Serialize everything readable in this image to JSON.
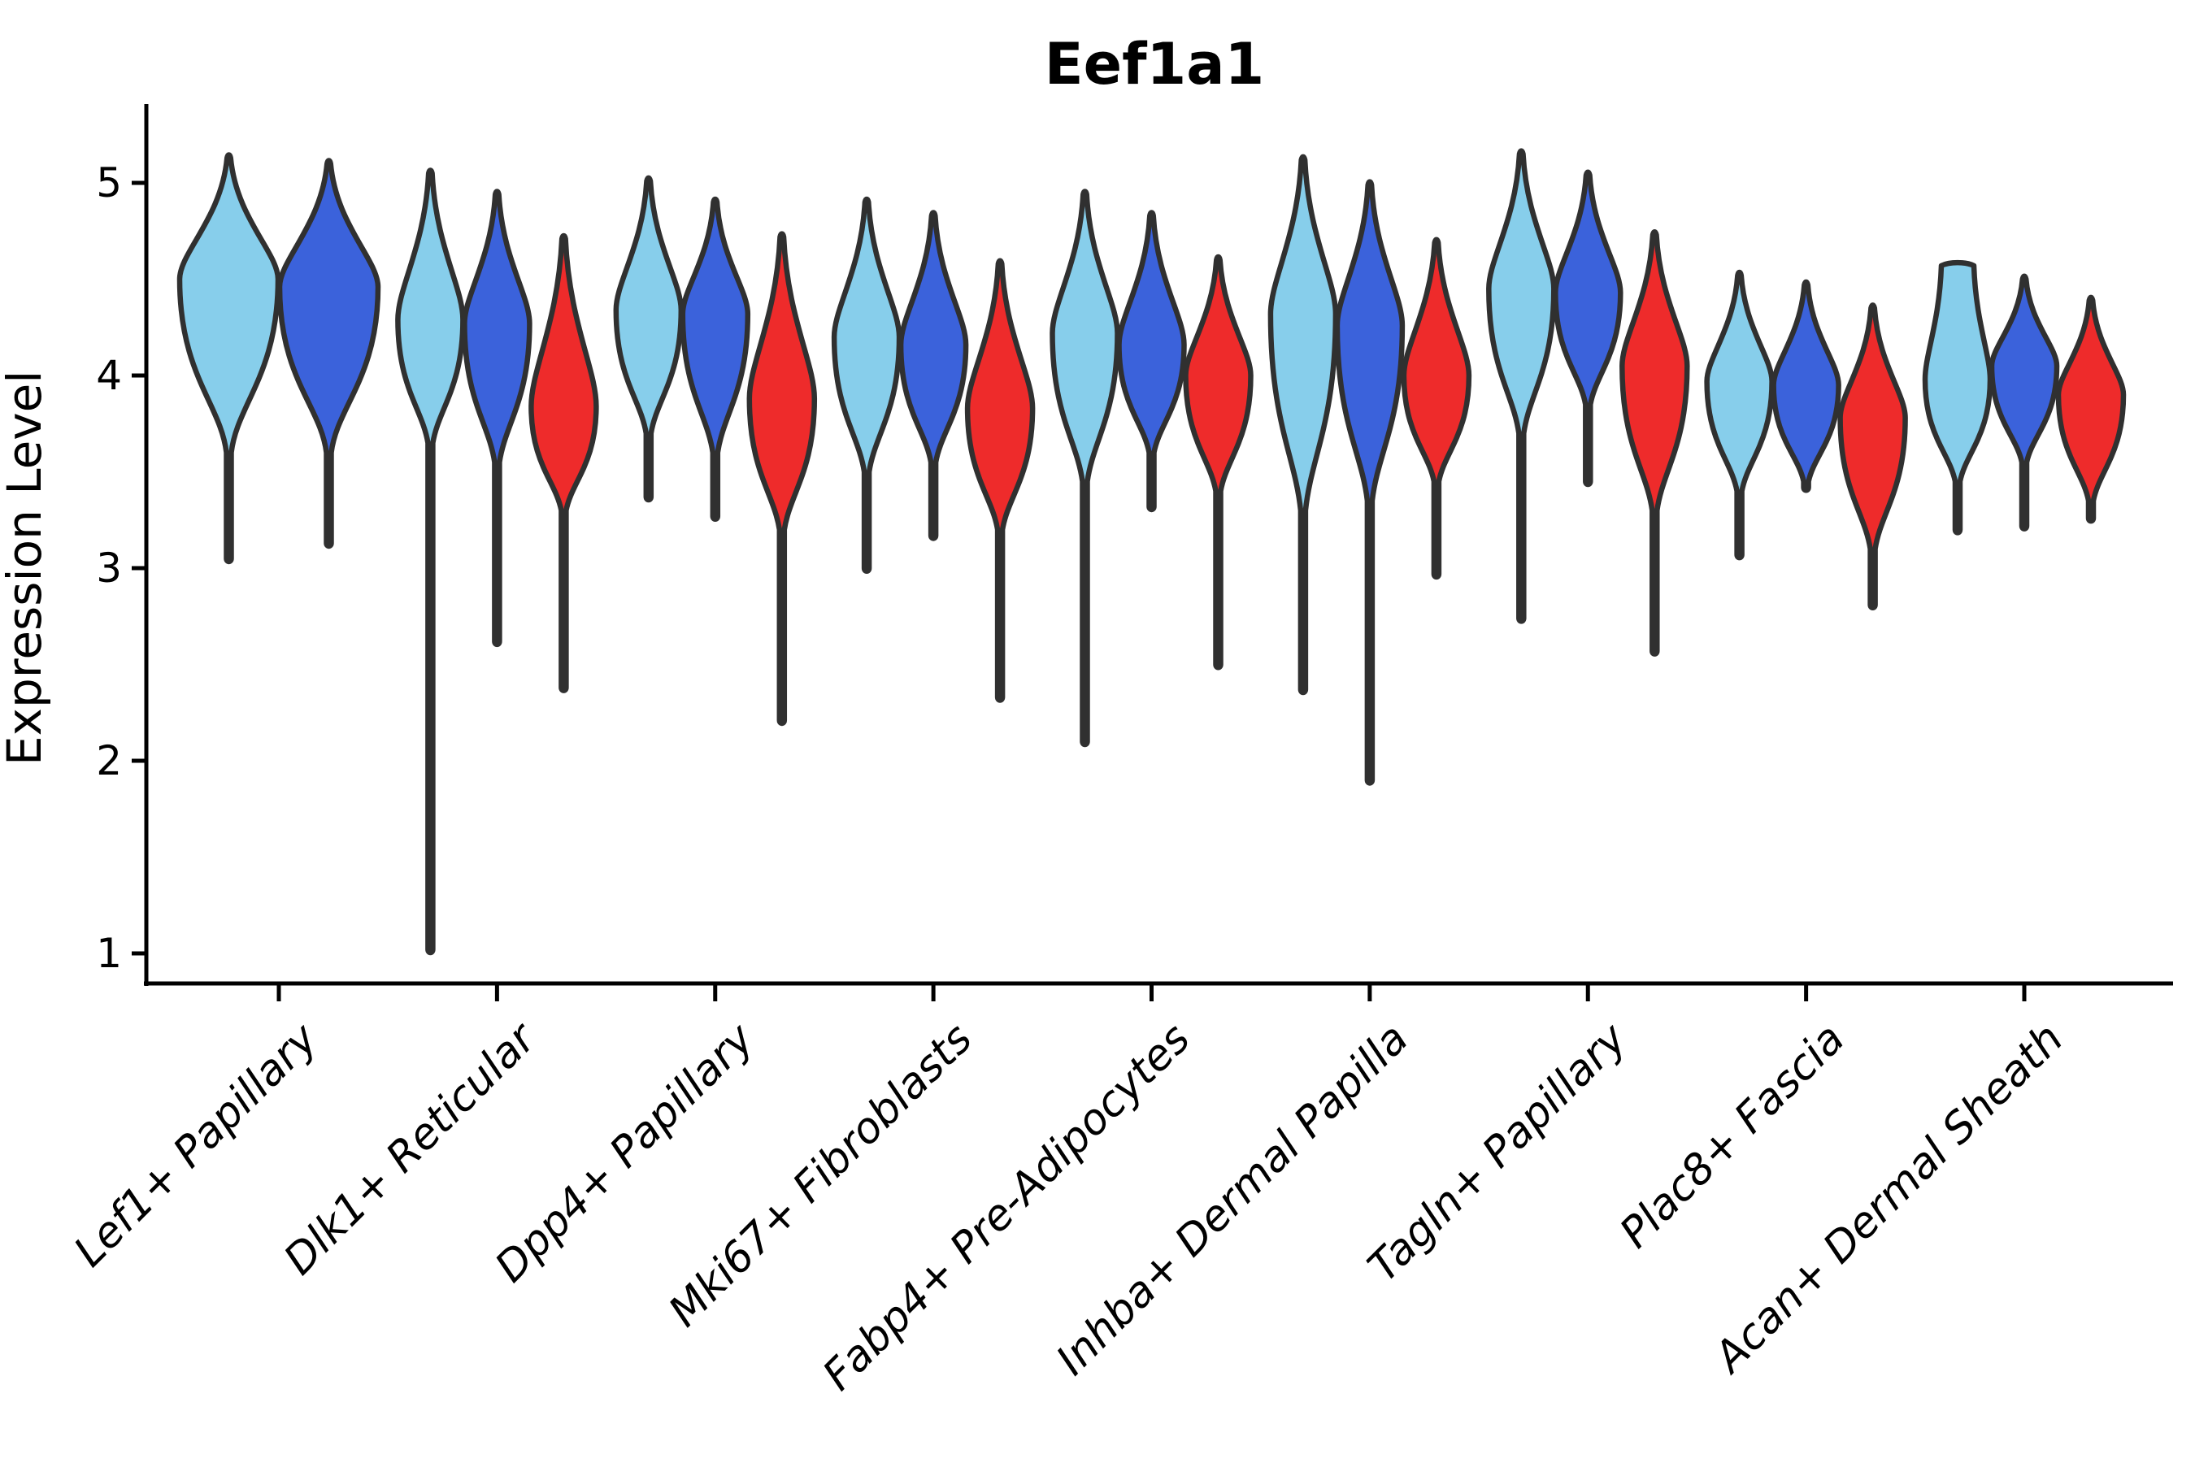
{
  "chart_data": {
    "type": "violin",
    "title": "Eef1a1",
    "ylabel": "Expression Level",
    "yticks": [
      {
        "label": "1",
        "value": 1
      },
      {
        "label": "2",
        "value": 2
      },
      {
        "label": "3",
        "value": 3
      },
      {
        "label": "4",
        "value": 4
      },
      {
        "label": "5",
        "value": 5
      }
    ],
    "ylim": [
      0.84,
      5.4
    ],
    "grid": false,
    "legend": "none",
    "categories": [
      "Lef1+ Papillary",
      "Dlk1+ Reticular",
      "Dpp4+ Papillary",
      "Mki67+ Fibroblasts",
      "Fabp4+ Pre-Adipocytes",
      "Inhba+ Dermal Papilla",
      "Tagln+ Papillary",
      "Plac8+ Fascia",
      "Acan+ Dermal Sheath"
    ],
    "outline_color": "#303030",
    "axis_color": "#000000",
    "background": "#ffffff",
    "series": [
      {
        "name": "skyblue-series",
        "color": "#87CEEB",
        "violins": [
          {
            "max": 5.13,
            "peak": 4.5,
            "taper": 3.6,
            "min": 3.05
          },
          {
            "max": 5.05,
            "peak": 4.29,
            "taper": 3.65,
            "min": 1.02
          },
          {
            "max": 5.01,
            "peak": 4.34,
            "taper": 3.7,
            "min": 3.37
          },
          {
            "max": 4.9,
            "peak": 4.2,
            "taper": 3.5,
            "min": 3.0
          },
          {
            "max": 4.94,
            "peak": 4.22,
            "taper": 3.45,
            "min": 2.1
          },
          {
            "max": 5.12,
            "peak": 4.32,
            "taper": 3.3,
            "min": 2.37
          },
          {
            "max": 5.15,
            "peak": 4.45,
            "taper": 3.7,
            "min": 2.74
          },
          {
            "max": 4.52,
            "peak": 3.97,
            "taper": 3.4,
            "min": 3.07
          },
          {
            "max": 4.57,
            "peak": 3.98,
            "taper": 3.45,
            "min": 3.2,
            "blunt_top": true
          }
        ]
      },
      {
        "name": "royalblue-series",
        "color": "#3B62DB",
        "violins": [
          {
            "max": 5.1,
            "peak": 4.46,
            "taper": 3.6,
            "min": 3.13
          },
          {
            "max": 4.94,
            "peak": 4.27,
            "taper": 3.55,
            "min": 2.62
          },
          {
            "max": 4.9,
            "peak": 4.32,
            "taper": 3.6,
            "min": 3.27
          },
          {
            "max": 4.83,
            "peak": 4.16,
            "taper": 3.55,
            "min": 3.17
          },
          {
            "max": 4.83,
            "peak": 4.16,
            "taper": 3.6,
            "min": 3.32
          },
          {
            "max": 4.99,
            "peak": 4.26,
            "taper": 3.35,
            "min": 1.9
          },
          {
            "max": 5.04,
            "peak": 4.43,
            "taper": 3.85,
            "min": 3.45
          },
          {
            "max": 4.47,
            "peak": 3.95,
            "taper": 3.45,
            "min": 3.42
          },
          {
            "max": 4.5,
            "peak": 4.05,
            "taper": 3.55,
            "min": 3.22
          }
        ]
      },
      {
        "name": "red-series",
        "color": "#EE2B2B",
        "violins": [
          null,
          {
            "max": 4.71,
            "peak": 3.84,
            "taper": 3.3,
            "min": 2.38
          },
          {
            "max": 4.72,
            "peak": 3.88,
            "taper": 3.2,
            "min": 2.21
          },
          {
            "max": 4.58,
            "peak": 3.83,
            "taper": 3.2,
            "min": 2.33
          },
          {
            "max": 4.6,
            "peak": 4.0,
            "taper": 3.4,
            "min": 2.5
          },
          {
            "max": 4.69,
            "peak": 4.0,
            "taper": 3.45,
            "min": 2.97
          },
          {
            "max": 4.73,
            "peak": 4.05,
            "taper": 3.3,
            "min": 2.57
          },
          {
            "max": 4.35,
            "peak": 3.78,
            "taper": 3.1,
            "min": 2.81
          },
          {
            "max": 4.39,
            "peak": 3.9,
            "taper": 3.35,
            "min": 3.26
          }
        ]
      }
    ]
  }
}
